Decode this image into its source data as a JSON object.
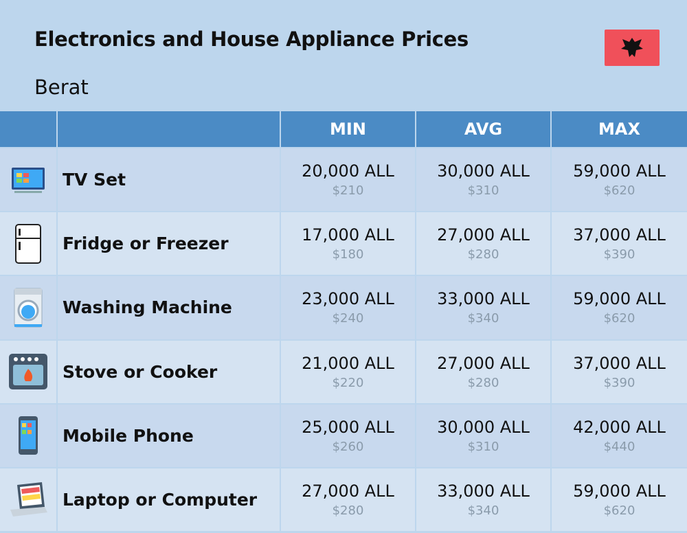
{
  "header": {
    "title": "Electronics and House Appliance Prices",
    "subtitle": "Berat"
  },
  "table": {
    "columns": [
      "MIN",
      "AVG",
      "MAX"
    ],
    "rows": [
      {
        "name": "TV Set",
        "cells": [
          {
            "local": "20,000 ALL",
            "usd": "$210"
          },
          {
            "local": "30,000 ALL",
            "usd": "$310"
          },
          {
            "local": "59,000 ALL",
            "usd": "$620"
          }
        ]
      },
      {
        "name": "Fridge or Freezer",
        "cells": [
          {
            "local": "17,000 ALL",
            "usd": "$180"
          },
          {
            "local": "27,000 ALL",
            "usd": "$280"
          },
          {
            "local": "37,000 ALL",
            "usd": "$390"
          }
        ]
      },
      {
        "name": "Washing Machine",
        "cells": [
          {
            "local": "23,000 ALL",
            "usd": "$240"
          },
          {
            "local": "33,000 ALL",
            "usd": "$340"
          },
          {
            "local": "59,000 ALL",
            "usd": "$620"
          }
        ]
      },
      {
        "name": "Stove or Cooker",
        "cells": [
          {
            "local": "21,000 ALL",
            "usd": "$220"
          },
          {
            "local": "27,000 ALL",
            "usd": "$280"
          },
          {
            "local": "37,000 ALL",
            "usd": "$390"
          }
        ]
      },
      {
        "name": "Mobile Phone",
        "cells": [
          {
            "local": "25,000 ALL",
            "usd": "$260"
          },
          {
            "local": "30,000 ALL",
            "usd": "$310"
          },
          {
            "local": "42,000 ALL",
            "usd": "$440"
          }
        ]
      },
      {
        "name": "Laptop or Computer",
        "cells": [
          {
            "local": "27,000 ALL",
            "usd": "$280"
          },
          {
            "local": "33,000 ALL",
            "usd": "$340"
          },
          {
            "local": "59,000 ALL",
            "usd": "$620"
          }
        ]
      }
    ]
  }
}
